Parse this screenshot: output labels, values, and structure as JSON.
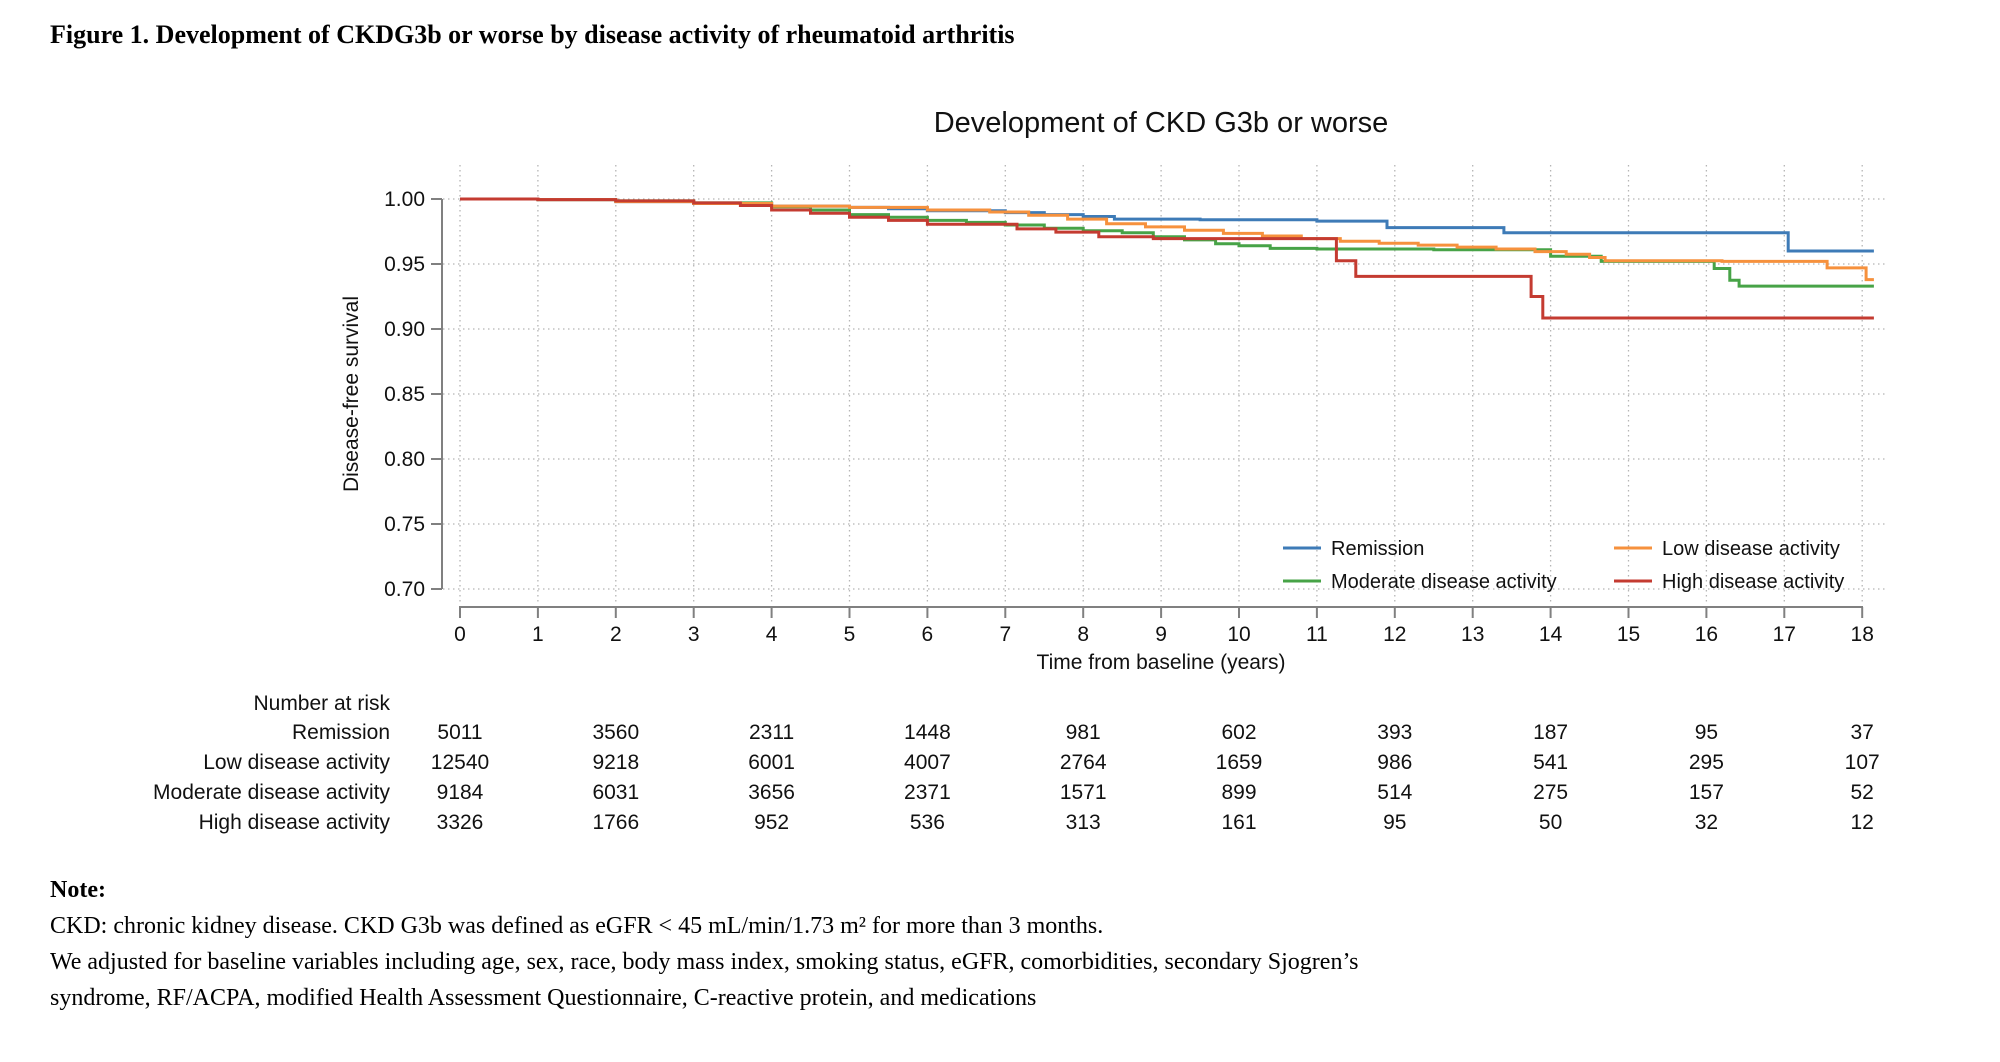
{
  "figure_caption": "Figure 1. Development of CKDG3b or worse by disease activity of rheumatoid arthritis",
  "chart_data": {
    "type": "line",
    "subtype": "kaplan-meier-step",
    "title": "Development of CKD G3b or worse",
    "xlabel": "Time from baseline (years)",
    "ylabel": "Disease-free survival",
    "xlim": [
      0,
      18
    ],
    "ylim": [
      0.7,
      1.0
    ],
    "x_ticks": [
      0,
      1,
      2,
      3,
      4,
      5,
      6,
      7,
      8,
      9,
      10,
      11,
      12,
      13,
      14,
      15,
      16,
      17,
      18
    ],
    "y_ticks": [
      "1.00",
      "0.95",
      "0.90",
      "0.85",
      "0.80",
      "0.75",
      "0.70"
    ],
    "y_tick_values": [
      1.0,
      0.95,
      0.9,
      0.85,
      0.8,
      0.75,
      0.7
    ],
    "grid": true,
    "legend_position": "lower right, 2 columns",
    "colors": {
      "remission": "#3E7BB7",
      "low": "#F6913D",
      "moderate": "#47A347",
      "high": "#C43B31",
      "grid": "#b5b5b5",
      "axis": "#808080"
    },
    "series": [
      {
        "name": "Remission",
        "color": "#3E7BB7",
        "steps": [
          [
            0,
            1.0
          ],
          [
            1,
            0.9995
          ],
          [
            2,
            0.998
          ],
          [
            3,
            0.9965
          ],
          [
            4,
            0.9945
          ],
          [
            5,
            0.9935
          ],
          [
            5.5,
            0.9925
          ],
          [
            6,
            0.991
          ],
          [
            7,
            0.9895
          ],
          [
            7.5,
            0.988
          ],
          [
            8,
            0.9865
          ],
          [
            8.4,
            0.9845
          ],
          [
            9.5,
            0.984
          ],
          [
            11,
            0.983
          ],
          [
            11.9,
            0.978
          ],
          [
            13.4,
            0.974
          ],
          [
            17.05,
            0.96
          ]
        ]
      },
      {
        "name": "Moderate disease activity",
        "color": "#47A347",
        "steps": [
          [
            0,
            1.0
          ],
          [
            1,
            0.9995
          ],
          [
            2,
            0.9985
          ],
          [
            3,
            0.997
          ],
          [
            4,
            0.994
          ],
          [
            4.5,
            0.9915
          ],
          [
            5,
            0.988
          ],
          [
            5.5,
            0.986
          ],
          [
            6,
            0.9835
          ],
          [
            6.5,
            0.982
          ],
          [
            7,
            0.98
          ],
          [
            7.5,
            0.9775
          ],
          [
            8,
            0.9755
          ],
          [
            8.5,
            0.974
          ],
          [
            8.9,
            0.971
          ],
          [
            9.3,
            0.9685
          ],
          [
            9.7,
            0.9655
          ],
          [
            10,
            0.964
          ],
          [
            10.4,
            0.962
          ],
          [
            11,
            0.9615
          ],
          [
            12.5,
            0.961
          ],
          [
            14,
            0.956
          ],
          [
            14.65,
            0.952
          ],
          [
            16.1,
            0.9465
          ],
          [
            16.3,
            0.9375
          ],
          [
            16.42,
            0.933
          ]
        ]
      },
      {
        "name": "Low disease activity",
        "color": "#F6913D",
        "steps": [
          [
            0,
            1.0
          ],
          [
            1,
            0.9995
          ],
          [
            2,
            0.998
          ],
          [
            3,
            0.9965
          ],
          [
            4,
            0.9945
          ],
          [
            5,
            0.9935
          ],
          [
            6,
            0.9915
          ],
          [
            6.8,
            0.99
          ],
          [
            7.3,
            0.9875
          ],
          [
            7.8,
            0.9845
          ],
          [
            8.3,
            0.981
          ],
          [
            8.8,
            0.9785
          ],
          [
            9.3,
            0.976
          ],
          [
            9.8,
            0.9735
          ],
          [
            10.3,
            0.9715
          ],
          [
            10.8,
            0.9695
          ],
          [
            11.3,
            0.9675
          ],
          [
            11.8,
            0.966
          ],
          [
            12.3,
            0.9645
          ],
          [
            12.8,
            0.963
          ],
          [
            13.3,
            0.9615
          ],
          [
            13.8,
            0.9595
          ],
          [
            14.2,
            0.9575
          ],
          [
            14.5,
            0.955
          ],
          [
            14.7,
            0.9525
          ],
          [
            16.2,
            0.952
          ],
          [
            17.55,
            0.947
          ],
          [
            18.05,
            0.938
          ]
        ]
      },
      {
        "name": "High disease activity",
        "color": "#C43B31",
        "steps": [
          [
            0,
            1.0
          ],
          [
            1,
            0.9995
          ],
          [
            2,
            0.9985
          ],
          [
            3,
            0.997
          ],
          [
            3.6,
            0.995
          ],
          [
            4,
            0.9915
          ],
          [
            4.5,
            0.989
          ],
          [
            5,
            0.986
          ],
          [
            5.5,
            0.9835
          ],
          [
            6,
            0.9805
          ],
          [
            7.15,
            0.977
          ],
          [
            7.65,
            0.9745
          ],
          [
            8.2,
            0.971
          ],
          [
            8.9,
            0.9695
          ],
          [
            11.25,
            0.9525
          ],
          [
            11.5,
            0.9405
          ],
          [
            13.75,
            0.925
          ],
          [
            13.9,
            0.9085
          ]
        ]
      }
    ],
    "legend": [
      {
        "label": "Remission",
        "color": "#3E7BB7",
        "row": 0,
        "col": 0
      },
      {
        "label": "Low disease activity",
        "color": "#F6913D",
        "row": 0,
        "col": 1
      },
      {
        "label": "Moderate disease activity",
        "color": "#47A347",
        "row": 1,
        "col": 0
      },
      {
        "label": "High disease activity",
        "color": "#C43B31",
        "row": 1,
        "col": 1
      }
    ]
  },
  "risk_table": {
    "header": "Number at risk",
    "times": [
      0,
      2,
      4,
      6,
      8,
      10,
      12,
      14,
      16,
      18
    ],
    "rows": [
      {
        "label": "Remission",
        "counts": [
          5011,
          3560,
          2311,
          1448,
          981,
          602,
          393,
          187,
          95,
          37
        ]
      },
      {
        "label": "Low disease activity",
        "counts": [
          12540,
          9218,
          6001,
          4007,
          2764,
          1659,
          986,
          541,
          295,
          107
        ]
      },
      {
        "label": "Moderate disease activity",
        "counts": [
          9184,
          6031,
          3656,
          2371,
          1571,
          899,
          514,
          275,
          157,
          52
        ]
      },
      {
        "label": "High disease activity",
        "counts": [
          3326,
          1766,
          952,
          536,
          313,
          161,
          95,
          50,
          32,
          12
        ]
      }
    ]
  },
  "note": {
    "label": "Note:",
    "lines": [
      "CKD: chronic kidney disease. CKD G3b was defined as eGFR < 45 mL/min/1.73 m² for more than 3 months.",
      "We adjusted for baseline variables including age, sex, race, body mass index, smoking status, eGFR, comorbidities, secondary Sjogren’s",
      "syndrome, RF/ACPA, modified Health Assessment Questionnaire, C-reactive protein, and medications"
    ]
  }
}
